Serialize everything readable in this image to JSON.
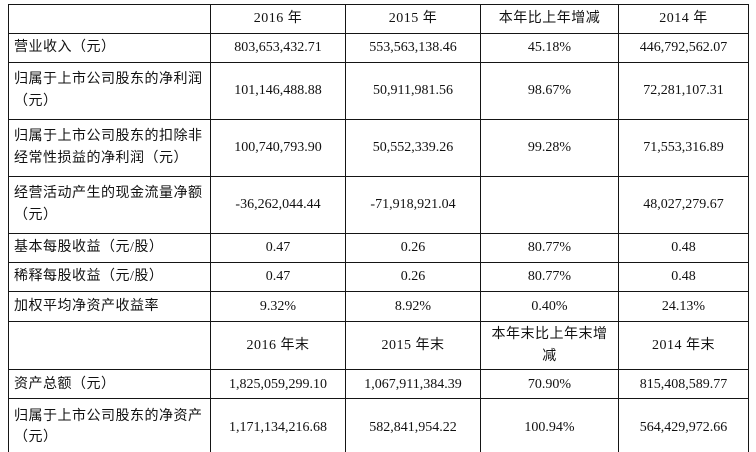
{
  "table": {
    "sections": [
      {
        "header": {
          "label": "",
          "cols": [
            "2016 年",
            "2015 年",
            "本年比上年增减",
            "2014 年"
          ]
        },
        "rows": [
          {
            "label": "营业收入（元）",
            "values": [
              "803,653,432.71",
              "553,563,138.46",
              "45.18%",
              "446,792,562.07"
            ]
          },
          {
            "label": "归属于上市公司股东的净利润（元）",
            "values": [
              "101,146,488.88",
              "50,911,981.56",
              "98.67%",
              "72,281,107.31"
            ]
          },
          {
            "label": "归属于上市公司股东的扣除非经常性损益的净利润（元）",
            "values": [
              "100,740,793.90",
              "50,552,339.26",
              "99.28%",
              "71,553,316.89"
            ]
          },
          {
            "label": "经营活动产生的现金流量净额（元）",
            "values": [
              "-36,262,044.44",
              "-71,918,921.04",
              "",
              "48,027,279.67"
            ]
          },
          {
            "label": "基本每股收益（元/股）",
            "values": [
              "0.47",
              "0.26",
              "80.77%",
              "0.48"
            ]
          },
          {
            "label": "稀释每股收益（元/股）",
            "values": [
              "0.47",
              "0.26",
              "80.77%",
              "0.48"
            ]
          },
          {
            "label": "加权平均净资产收益率",
            "values": [
              "9.32%",
              "8.92%",
              "0.40%",
              "24.13%"
            ]
          }
        ]
      },
      {
        "header": {
          "label": "",
          "cols": [
            "2016 年末",
            "2015 年末",
            "本年末比上年末增减",
            "2014 年末"
          ]
        },
        "rows": [
          {
            "label": "资产总额（元）",
            "values": [
              "1,825,059,299.10",
              "1,067,911,384.39",
              "70.90%",
              "815,408,589.77"
            ]
          },
          {
            "label": "归属于上市公司股东的净资产（元）",
            "values": [
              "1,171,134,216.68",
              "582,841,954.22",
              "100.94%",
              "564,429,972.66"
            ]
          }
        ]
      }
    ]
  }
}
